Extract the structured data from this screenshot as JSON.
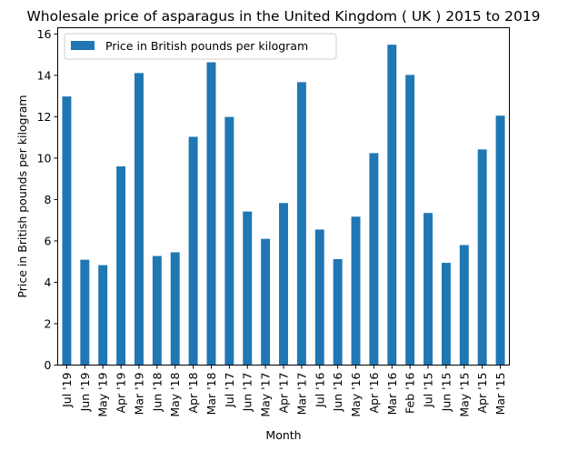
{
  "chart_data": {
    "type": "bar",
    "title": "Wholesale price of asparagus in the United Kingdom ( UK ) 2015 to 2019",
    "xlabel": "Month",
    "ylabel": "Price in British pounds per kilogram",
    "ylim": [
      0,
      16.3
    ],
    "yticks": [
      "0",
      "2",
      "4",
      "6",
      "8",
      "10",
      "12",
      "14",
      "16"
    ],
    "grid": false,
    "legend_position": "upper-left",
    "bar_color": "#1f77b4",
    "categories": [
      "Jul '19",
      "Jun '19",
      "May '19",
      "Apr '19",
      "Mar '19",
      "Jun '18",
      "May '18",
      "Apr '18",
      "Mar '18",
      "Jul '17",
      "Jun '17",
      "May '17",
      "Apr '17",
      "Mar '17",
      "Jul '16",
      "Jun '16",
      "May '16",
      "Apr '16",
      "Mar '16",
      "Feb '16",
      "Jul '15",
      "Jun '15",
      "May '15",
      "Apr '15",
      "Mar '15"
    ],
    "series": [
      {
        "name": "Price in British pounds per kilogram",
        "values": [
          12.98,
          5.09,
          4.83,
          9.6,
          14.11,
          5.27,
          5.45,
          11.03,
          14.63,
          11.99,
          7.42,
          6.1,
          7.83,
          13.67,
          6.55,
          5.12,
          7.17,
          10.24,
          15.48,
          14.02,
          7.35,
          4.94,
          5.8,
          10.42,
          12.05
        ]
      }
    ]
  }
}
